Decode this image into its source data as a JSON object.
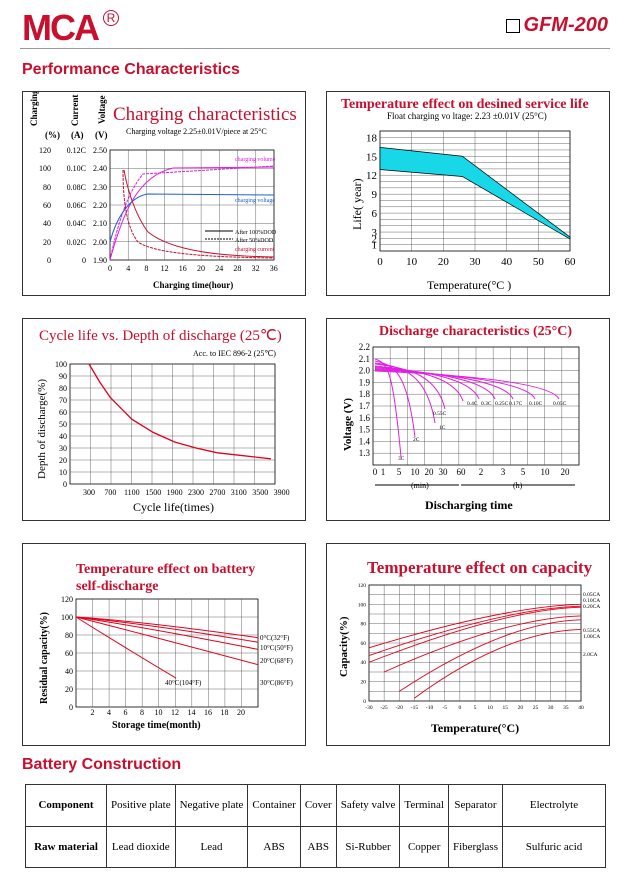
{
  "header": {
    "brand": "MCA",
    "registered": "R",
    "model": "GFM-200"
  },
  "sections": {
    "performance": "Performance Characteristics",
    "construction": "Battery Construction"
  },
  "colors": {
    "red": "#c8102e",
    "magenta": "#e020e0",
    "blue": "#1f5fd6",
    "cyan": "#18d8e8"
  },
  "charts": {
    "charging": {
      "title": "Charging characteristics",
      "subtitle": "Charging voltage  2.25±0.01V/piece at 25°C",
      "col_labels": [
        "Charging Volume",
        "Current",
        "Voltage"
      ],
      "col_units": [
        "(%)",
        "(A)",
        "(V)"
      ],
      "vol_ticks": [
        "120",
        "100",
        "80",
        "60",
        "40",
        "20",
        "0"
      ],
      "cur_ticks": [
        "0.12C",
        "0.10C",
        "0.08C",
        "0.06C",
        "0.04C",
        "0.02C",
        "0"
      ],
      "volt_ticks": [
        "2.50",
        "2.40",
        "2.30",
        "2.20",
        "2.10",
        "2.00",
        "1.90"
      ],
      "x_ticks": [
        "0",
        "4",
        "8",
        "12",
        "16",
        "20",
        "24",
        "28",
        "32",
        "36"
      ],
      "xlabel": "Charging time(hour)",
      "series_labels": [
        "charging volume",
        "charging voltage",
        "charging current"
      ],
      "legend": [
        "After 100%DOD",
        "After 50%DOD"
      ]
    },
    "service_life": {
      "title": "Temperature effect on desined service life",
      "subtitle": "Float charging vo  ltage:  2.23 ±0.01V   (25°C)",
      "y_ticks": [
        "18",
        "15",
        "12",
        "9",
        "6",
        "3",
        "2",
        "1"
      ],
      "x_ticks": [
        "0",
        "10",
        "20",
        "30",
        "40",
        "50",
        "60"
      ],
      "ylabel": "Life( year)",
      "xlabel": "Temperature(°C )"
    },
    "cycle_life": {
      "title": "Cycle life vs. Depth of discharge (25℃)",
      "subtitle": "Acc. to IEC 896-2 (25℃)",
      "y_ticks": [
        "100",
        "90",
        "80",
        "70",
        "60",
        "50",
        "40",
        "30",
        "20",
        "10",
        "0"
      ],
      "x_ticks": [
        "300",
        "700",
        "1100",
        "1500",
        "1900",
        "2300",
        "2700",
        "3100",
        "3500",
        "3900"
      ],
      "ylabel": "Depth of discharge(%)",
      "xlabel": "Cycle life(times)"
    },
    "discharge": {
      "title": "Discharge characteristics (25°C)",
      "y_ticks": [
        "2.2",
        "2.1",
        "2.0",
        "1.9",
        "1.8",
        "1.7",
        "1.6",
        "1.5",
        "1.4",
        "1.3"
      ],
      "x_ticks": [
        "0",
        "1",
        "5",
        "10",
        "20",
        "30",
        "60",
        "2",
        "3",
        "5",
        "10",
        "20"
      ],
      "x_units": [
        "(min)",
        "(h)"
      ],
      "ylabel": "Voltage (V)",
      "xlabel": "Discharging time",
      "curve_labels": [
        "3C",
        "2C",
        "1C",
        "0.55C",
        "0.4C",
        "0.3C",
        "0.25C",
        "0.17C",
        "0.10C",
        "0.05C"
      ]
    },
    "self_discharge": {
      "title": "Temperature effect on battery",
      "title2": "self-discharge",
      "y_ticks": [
        "120",
        "100",
        "80",
        "60",
        "40",
        "20",
        "0"
      ],
      "x_ticks": [
        "2",
        "4",
        "6",
        "8",
        "10",
        "12",
        "14",
        "16",
        "18",
        "20"
      ],
      "ylabel": "Residual capacity(%)",
      "xlabel": "Storage time(month)",
      "curve_labels": [
        "0°C(32°F)",
        "10°C(50°F)",
        "20°C(68°F)",
        "30°C(86°F)",
        "40°C(104°F)"
      ]
    },
    "capacity": {
      "title": "Temperature effect on capacity",
      "y_ticks": [
        "120",
        "100",
        "80",
        "60",
        "40",
        "20",
        "0"
      ],
      "x_ticks": [
        "-30",
        "-25",
        "-20",
        "-15",
        "-10",
        "-5",
        "0",
        "5",
        "10",
        "15",
        "20",
        "25",
        "30",
        "35",
        "40"
      ],
      "ylabel": "Capacity(%)",
      "xlabel": "Temperature(°C)",
      "curve_labels": [
        "0.05CA",
        "0.10CA",
        "0.20CA",
        "0.55CA",
        "1.00CA",
        "2.0CA"
      ]
    }
  },
  "construction_table": {
    "header": [
      "Component",
      "Positive plate",
      "Negative plate",
      "Container",
      "Cover",
      "Safety valve",
      "Terminal",
      "Separator",
      "Electrolyte"
    ],
    "row": [
      "Raw material",
      "Lead dioxide",
      "Lead",
      "ABS",
      "ABS",
      "Si-Rubber",
      "Copper",
      "Fiberglass",
      "Sulfuric acid"
    ]
  }
}
